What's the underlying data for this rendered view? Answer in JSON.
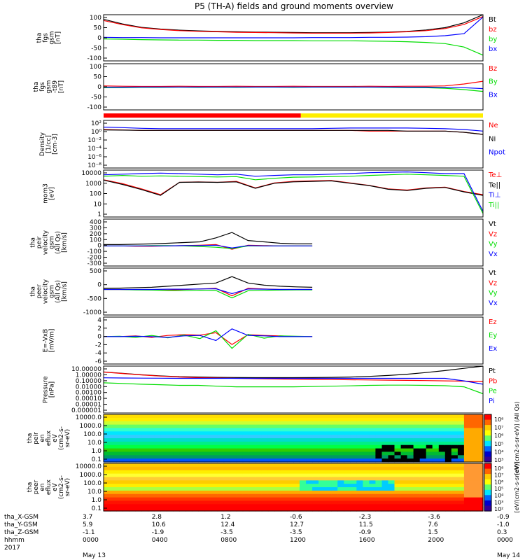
{
  "title": "P5 (TH-A) fields and ground moments overview",
  "colors": {
    "black": "#000000",
    "red": "#ff0000",
    "green": "#00dd00",
    "blue": "#0000ff",
    "yellow": "#ffee00",
    "cyan": "#00e6ff",
    "orange": "#ff9900"
  },
  "chart_data": [
    {
      "type": "line",
      "panel": "fgs_gsm",
      "ylabel": [
        "tha",
        "fgs",
        "gsm",
        "[nT]"
      ],
      "ylim": [
        -100,
        100
      ],
      "yticks": [
        "100",
        "50",
        "0",
        "-50",
        "-100"
      ],
      "series": [
        {
          "name": "Bt",
          "color": "black",
          "values": [
            80,
            60,
            45,
            38,
            33,
            30,
            28,
            26,
            25,
            24,
            23,
            22,
            22,
            22,
            23,
            25,
            28,
            34,
            44,
            65,
            100
          ]
        },
        {
          "name": "bz",
          "color": "red",
          "values": [
            75,
            57,
            43,
            36,
            31,
            28,
            26,
            24,
            23,
            22,
            21,
            20,
            20,
            20,
            21,
            23,
            26,
            31,
            40,
            58,
            92
          ]
        },
        {
          "name": "by",
          "color": "green",
          "values": [
            -5,
            -6,
            -8,
            -9,
            -10,
            -10,
            -11,
            -11,
            -12,
            -12,
            -12,
            -13,
            -13,
            -13,
            -14,
            -15,
            -17,
            -20,
            -25,
            -40,
            -75
          ]
        },
        {
          "name": "bx",
          "color": "blue",
          "values": [
            2,
            1,
            1,
            0,
            0,
            0,
            0,
            0,
            0,
            0,
            0,
            1,
            1,
            1,
            2,
            2,
            3,
            5,
            9,
            18,
            90
          ]
        }
      ]
    },
    {
      "type": "line",
      "panel": "fgs_gsm_minus_t89",
      "ylabel": [
        "tha",
        "fgs",
        "gsm",
        "-t89",
        "[nT]"
      ],
      "ylim": [
        -125,
        125
      ],
      "yticks": [
        "100",
        "50",
        "0",
        "-50",
        "-100"
      ],
      "series": [
        {
          "name": "Bz",
          "color": "red",
          "values": [
            5,
            3,
            2,
            2,
            3,
            2,
            2,
            3,
            2,
            2,
            3,
            2,
            2,
            2,
            3,
            2,
            3,
            3,
            5,
            15,
            30
          ]
        },
        {
          "name": "By",
          "color": "green",
          "values": [
            -5,
            -4,
            -3,
            -3,
            -2,
            -3,
            -2,
            -3,
            -2,
            -2,
            -3,
            -2,
            -2,
            -2,
            -2,
            -3,
            -4,
            -5,
            -8,
            -15,
            -25
          ]
        },
        {
          "name": "Bx",
          "color": "blue",
          "values": [
            -2,
            -2,
            -1,
            -1,
            -1,
            -1,
            -1,
            -1,
            -1,
            -1,
            -1,
            -1,
            -1,
            -1,
            -1,
            -1,
            -2,
            -2,
            -3,
            -5,
            -10
          ]
        }
      ]
    },
    {
      "type": "line",
      "panel": "density",
      "ylabel": [
        "Density",
        "[1/cc]",
        "[cm-3]"
      ],
      "yscale": "log",
      "ylim": [
        1e-09,
        1000.0
      ],
      "yticks": [
        "10²",
        "10⁰",
        "10⁻²",
        "10⁻⁴",
        "10⁻⁶",
        "10⁻⁸"
      ],
      "series": [
        {
          "name": "Ne",
          "color": "red",
          "values": [
            5,
            4,
            3,
            3,
            3,
            3,
            3,
            3,
            3,
            3,
            3,
            3,
            3,
            3,
            2,
            2,
            2,
            2,
            2,
            1,
            0.3
          ]
        },
        {
          "name": "Ni",
          "color": "black",
          "values": [
            4,
            3.5,
            3,
            3,
            3,
            3,
            3,
            3,
            3,
            3,
            3,
            3,
            3,
            3,
            3,
            3,
            2,
            2,
            2,
            1,
            0.3
          ]
        },
        {
          "name": "Npot",
          "color": "blue",
          "values": [
            20,
            15,
            10,
            8,
            8,
            8,
            8,
            8,
            8,
            8,
            8,
            8,
            10,
            12,
            12,
            12,
            12,
            10,
            8,
            5,
            2
          ]
        }
      ]
    },
    {
      "type": "line",
      "panel": "temperature",
      "ylabel": [
        "mom3",
        "[eV]"
      ],
      "yscale": "log",
      "ylim": [
        1,
        10000
      ],
      "yticks": [
        "10000",
        "1000",
        "100",
        "10",
        "1"
      ],
      "series": [
        {
          "name": "Te⊥",
          "color": "red",
          "values": [
            1500,
            700,
            250,
            80,
            900,
            1000,
            900,
            1100,
            300,
            800,
            1100,
            1200,
            1300,
            800,
            500,
            250,
            200,
            300,
            350,
            150,
            80
          ]
        },
        {
          "name": "Te||",
          "color": "black",
          "values": [
            1400,
            600,
            220,
            70,
            900,
            950,
            900,
            1000,
            280,
            750,
            1000,
            1100,
            1200,
            750,
            480,
            230,
            180,
            280,
            330,
            140,
            70
          ]
        },
        {
          "name": "Ti⊥",
          "color": "blue",
          "values": [
            4000,
            4500,
            5000,
            5500,
            5000,
            4500,
            4000,
            4500,
            3000,
            3500,
            4000,
            4000,
            4500,
            5000,
            6000,
            6500,
            7000,
            6000,
            5000,
            5000,
            3
          ]
        },
        {
          "name": "Ti||",
          "color": "green",
          "values": [
            3000,
            3500,
            3000,
            3200,
            3000,
            2800,
            2600,
            2800,
            1500,
            2000,
            2500,
            2600,
            2800,
            3000,
            3500,
            4000,
            4500,
            4000,
            3500,
            3000,
            2
          ]
        }
      ]
    },
    {
      "type": "line",
      "panel": "peir_velocity",
      "ylabel": [
        "tha",
        "peir",
        "velocity",
        "gsm",
        "(All Qs)",
        "[km/s]"
      ],
      "ylim": [
        -300,
        400
      ],
      "yticks": [
        "400",
        "300",
        "200",
        "100",
        "0",
        "-100",
        "-200",
        "-300"
      ],
      "series": [
        {
          "name": "Vt",
          "color": "black",
          "values": [
            20,
            20,
            25,
            30,
            40,
            50,
            60,
            120,
            200,
            80,
            60,
            40,
            30,
            30
          ]
        },
        {
          "name": "Vz",
          "color": "red",
          "values": [
            0,
            0,
            -5,
            -5,
            0,
            5,
            10,
            20,
            -50,
            10,
            5,
            0,
            0,
            0
          ]
        },
        {
          "name": "Vy",
          "color": "green",
          "values": [
            0,
            0,
            0,
            5,
            5,
            0,
            -10,
            -20,
            -40,
            0,
            0,
            0,
            0,
            0
          ]
        },
        {
          "name": "Vx",
          "color": "blue",
          "values": [
            0,
            0,
            0,
            0,
            0,
            5,
            5,
            10,
            -30,
            5,
            0,
            0,
            0,
            0
          ]
        }
      ]
    },
    {
      "type": "line",
      "panel": "peer_velocity",
      "ylabel": [
        "tha",
        "peer",
        "velocity",
        "gsm",
        "(All Qs)",
        "[km/s]"
      ],
      "ylim": [
        -1200,
        1000
      ],
      "yticks": [
        "500",
        "0",
        "-500",
        "-1000"
      ],
      "series": [
        {
          "name": "Vt",
          "color": "black",
          "values": [
            50,
            60,
            80,
            100,
            150,
            200,
            250,
            300,
            600,
            300,
            200,
            150,
            120,
            100
          ]
        },
        {
          "name": "Vz",
          "color": "red",
          "values": [
            0,
            0,
            -10,
            -20,
            -30,
            0,
            20,
            50,
            -300,
            50,
            20,
            0,
            0,
            0
          ]
        },
        {
          "name": "Vy",
          "color": "green",
          "values": [
            0,
            0,
            -20,
            -30,
            -50,
            -60,
            -40,
            -50,
            -400,
            -60,
            -40,
            -30,
            -20,
            -20
          ]
        },
        {
          "name": "Vx",
          "color": "blue",
          "values": [
            0,
            0,
            0,
            0,
            10,
            10,
            20,
            30,
            -200,
            20,
            10,
            0,
            0,
            0
          ]
        }
      ]
    },
    {
      "type": "line",
      "panel": "e_field",
      "ylabel": [
        "E=-VxB",
        "[mV/m]"
      ],
      "ylim": [
        -7,
        5
      ],
      "yticks": [
        "4",
        "2",
        "0",
        "-2",
        "-4",
        "-6"
      ],
      "series": [
        {
          "name": "Ez",
          "color": "red",
          "values": [
            0,
            0,
            0.2,
            -0.2,
            0.3,
            0.5,
            0.4,
            1,
            -2,
            0.5,
            0.3,
            0.2,
            0,
            0
          ]
        },
        {
          "name": "Ey",
          "color": "green",
          "values": [
            0,
            0.1,
            -0.2,
            0.3,
            -0.3,
            0.4,
            -0.5,
            1.5,
            -3,
            0.6,
            -0.4,
            0.2,
            0.1,
            0
          ]
        },
        {
          "name": "Ex",
          "color": "blue",
          "values": [
            0,
            0,
            0.1,
            0,
            -0.2,
            0.2,
            0.3,
            -1,
            2,
            0.3,
            0.2,
            0,
            0,
            0
          ]
        }
      ]
    },
    {
      "type": "line",
      "panel": "pressure",
      "ylabel": [
        "Pressure",
        "[nPa]"
      ],
      "yscale": "log",
      "ylim": [
        1e-06,
        20
      ],
      "yticks": [
        "10.00000",
        "1.00000",
        "0.10000",
        "0.01000",
        "0.00100",
        "0.00010",
        "0.00001",
        "0.000001"
      ],
      "series": [
        {
          "name": "Pt",
          "color": "black",
          "values": [
            2.5,
            1.5,
            0.9,
            0.6,
            0.45,
            0.4,
            0.35,
            0.33,
            0.32,
            0.32,
            0.32,
            0.33,
            0.35,
            0.4,
            0.5,
            0.7,
            1.1,
            2,
            4,
            9,
            20
          ]
        },
        {
          "name": "Pb",
          "color": "red",
          "values": [
            2.4,
            1.4,
            0.85,
            0.55,
            0.4,
            0.32,
            0.28,
            0.25,
            0.22,
            0.2,
            0.18,
            0.17,
            0.16,
            0.15,
            0.14,
            0.13,
            0.12,
            0.11,
            0.1,
            0.09,
            0.08
          ]
        },
        {
          "name": "Pe",
          "color": "green",
          "values": [
            0.05,
            0.04,
            0.03,
            0.025,
            0.02,
            0.02,
            0.015,
            0.012,
            0.012,
            0.012,
            0.012,
            0.013,
            0.015,
            0.017,
            0.02,
            0.022,
            0.022,
            0.02,
            0.018,
            0.012,
            0.001
          ]
        },
        {
          "name": "Pi",
          "color": "blue",
          "values": [
            0.3,
            0.28,
            0.27,
            0.26,
            0.25,
            0.25,
            0.25,
            0.25,
            0.25,
            0.25,
            0.25,
            0.25,
            0.25,
            0.25,
            0.25,
            0.25,
            0.25,
            0.25,
            0.25,
            0.1,
            0.03
          ]
        }
      ]
    },
    {
      "type": "heatmap",
      "panel": "peir_en_eflux",
      "ylabel": [
        "tha",
        "peir",
        "en",
        "eflux",
        "eV",
        "(cm2-s-",
        "sr-eV)"
      ],
      "yscale": "log",
      "ylim": [
        0.1,
        20000
      ],
      "yticks": [
        "10000.0",
        "1000.0",
        "100.0",
        "10.0",
        "1.0",
        "0.1"
      ],
      "colorbar_label": "[eV/(cm2-s-sr-eV)] (All Qs)",
      "colorbar_ticks": [
        "10⁸",
        "10⁷",
        "10⁶",
        "10⁵",
        "10⁴",
        "10³"
      ]
    },
    {
      "type": "heatmap",
      "panel": "peer_en_eflux",
      "ylabel": [
        "tha",
        "peer",
        "en",
        "eflux",
        "eV",
        "(cm2-s-",
        "sr-eV)"
      ],
      "yscale": "log",
      "ylim": [
        0.05,
        20000
      ],
      "yticks": [
        "10000.0",
        "1000.0",
        "100.0",
        "10.0",
        "1.0",
        "0.1"
      ],
      "colorbar_label": "[eV/(cm2-s-sr-eV)]",
      "colorbar_ticks": [
        "10⁸",
        "10⁷",
        "10⁶",
        "10⁵",
        "10⁴",
        "10³",
        "10²"
      ]
    }
  ],
  "flag_bar": {
    "segments": [
      {
        "color": "red",
        "from": 0,
        "to": 0.52
      },
      {
        "color": "yellow",
        "from": 0.52,
        "to": 1.0
      }
    ]
  },
  "x_axis": {
    "row_labels": [
      "tha_X-GSM",
      "tha_Y-GSM",
      "tha_Z-GSM",
      "hhmm",
      "2017"
    ],
    "columns": [
      {
        "x": "3.7",
        "y": "5.9",
        "z": "-1.1",
        "hhmm": "0000",
        "date": "May 13"
      },
      {
        "x": "2.8",
        "y": "10.6",
        "z": "-1.9",
        "hhmm": "0400",
        "date": ""
      },
      {
        "x": "1.2",
        "y": "12.4",
        "z": "-3.5",
        "hhmm": "0800",
        "date": ""
      },
      {
        "x": "-0.6",
        "y": "12.7",
        "z": "-3.5",
        "hhmm": "1200",
        "date": ""
      },
      {
        "x": "-2.3",
        "y": "11.5",
        "z": "-0.9",
        "hhmm": "1600",
        "date": ""
      },
      {
        "x": "-3.6",
        "y": "7.6",
        "z": "1.5",
        "hhmm": "2000",
        "date": ""
      },
      {
        "x": "-0.9",
        "y": "-1.0",
        "z": "0.3",
        "hhmm": "0000",
        "date": "May 14"
      }
    ]
  }
}
